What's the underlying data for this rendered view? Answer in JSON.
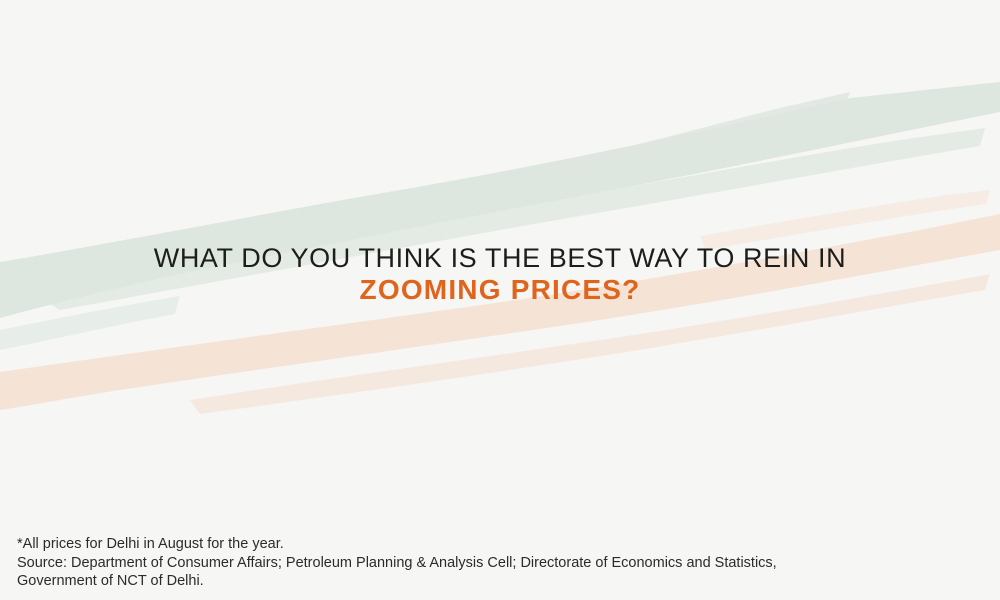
{
  "headline": {
    "question": "WHAT DO YOU THINK IS THE BEST WAY TO REIN IN",
    "emphasis": "ZOOMING PRICES?"
  },
  "footnote": {
    "note": "*All prices for Delhi in August for the year.",
    "source_line1": "Source: Department of Consumer Affairs; Petroleum Planning & Analysis Cell; Directorate of Economics and Statistics,",
    "source_line2": "Government of NCT of Delhi."
  },
  "colors": {
    "background": "#f6f6f5",
    "headline_text": "#1d1d1b",
    "emphasis_text": "#e0651c",
    "green_stroke": "#d9e4dc",
    "saffron_stroke": "#f5e2d3",
    "footnote_text": "#2b2b2b"
  }
}
